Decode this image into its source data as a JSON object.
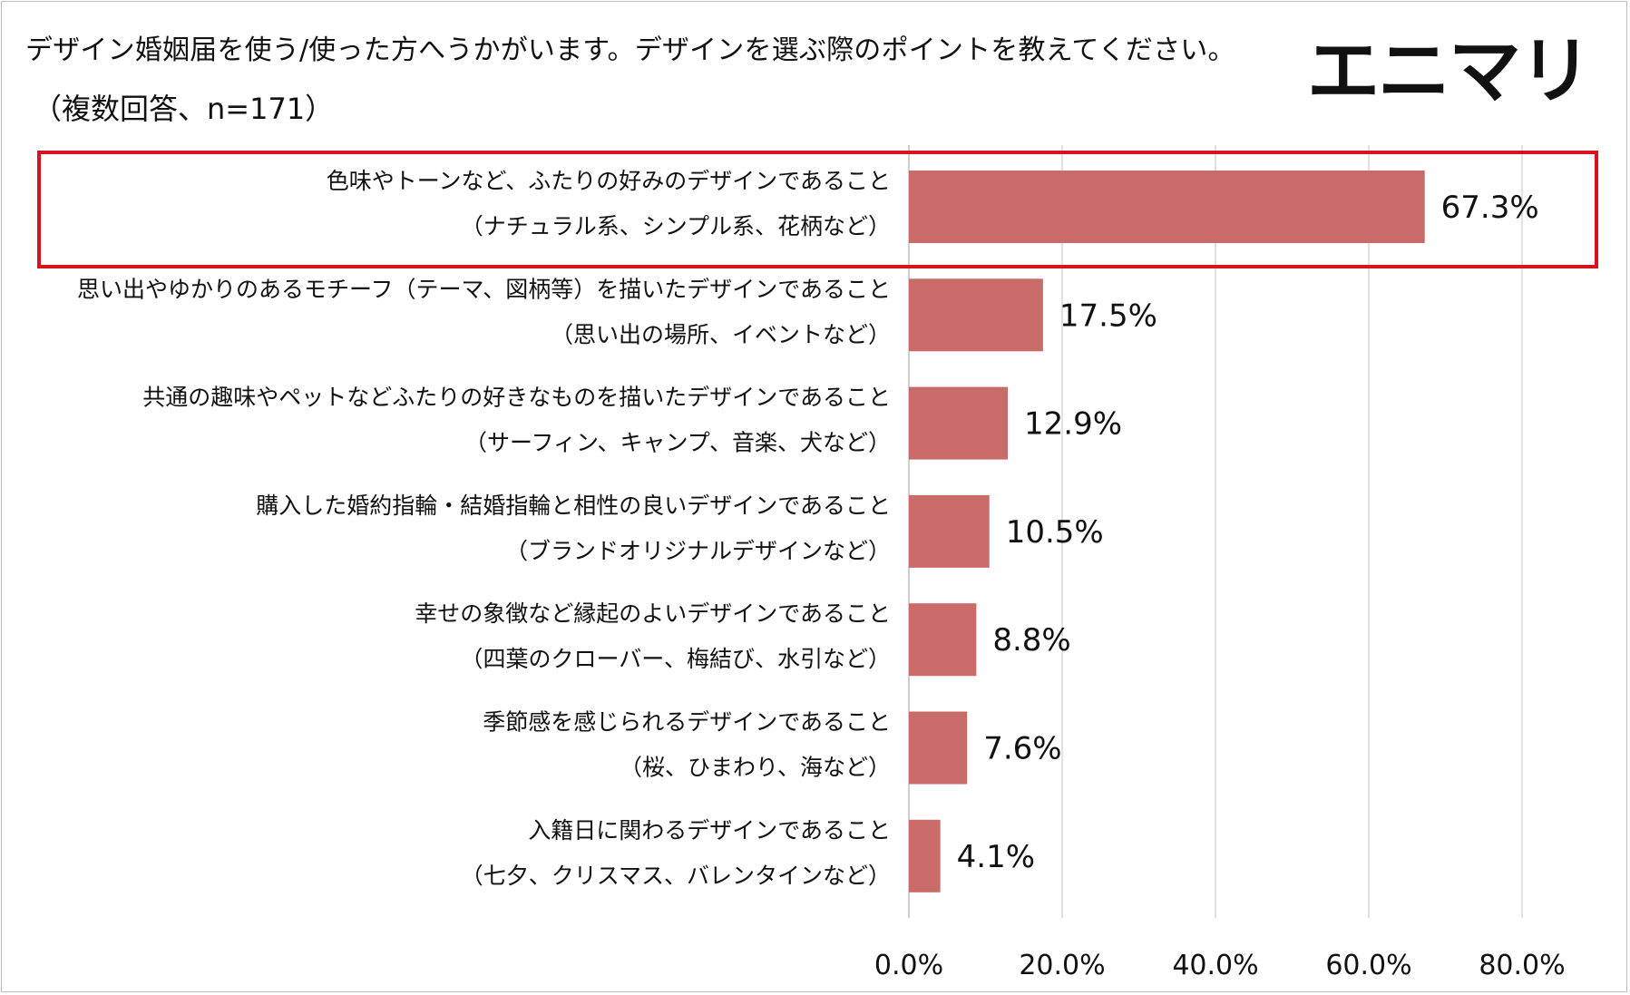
{
  "header": {
    "title": "デザイン婚姻届を使う/使った方へうかがいます。デザインを選ぶ際のポイントを教えてください。",
    "subtitle": "（複数回答、n=171）",
    "logo_text": "エニマリ"
  },
  "colors": {
    "bar": "#c96b68",
    "highlight_border": "#d9141f",
    "grid": "#d9d9d9"
  },
  "chart_data": {
    "type": "bar",
    "orientation": "horizontal",
    "categories": [
      [
        "色味やトーンなど、ふたりの好みのデザインであること",
        "（ナチュラル系、シンプル系、花柄など）"
      ],
      [
        "思い出やゆかりのあるモチーフ（テーマ、図柄等）を描いたデザインであること",
        "（思い出の場所、イベントなど）"
      ],
      [
        "共通の趣味やペットなどふたりの好きなものを描いたデザインであること",
        "（サーフィン、キャンプ、音楽、犬など）"
      ],
      [
        "購入した婚約指輪・結婚指輪と相性の良いデザインであること",
        "（ブランドオリジナルデザインなど）"
      ],
      [
        "幸せの象徴など縁起のよいデザインであること",
        "（四葉のクローバー、梅結び、水引など）"
      ],
      [
        "季節感を感じられるデザインであること",
        "（桜、ひまわり、海など）"
      ],
      [
        "入籍日に関わるデザインであること",
        "（七夕、クリスマス、バレンタインなど）"
      ]
    ],
    "values": [
      67.3,
      17.5,
      12.9,
      10.5,
      8.8,
      7.6,
      4.1
    ],
    "value_labels": [
      "67.3%",
      "17.5%",
      "12.9%",
      "10.5%",
      "8.8%",
      "7.6%",
      "4.1%"
    ],
    "xlim": [
      0,
      80
    ],
    "xticks": [
      0,
      20,
      40,
      60,
      80
    ],
    "xtick_labels": [
      "0.0%",
      "20.0%",
      "40.0%",
      "60.0%",
      "80.0%"
    ],
    "highlighted_index": 0,
    "grid": true
  }
}
